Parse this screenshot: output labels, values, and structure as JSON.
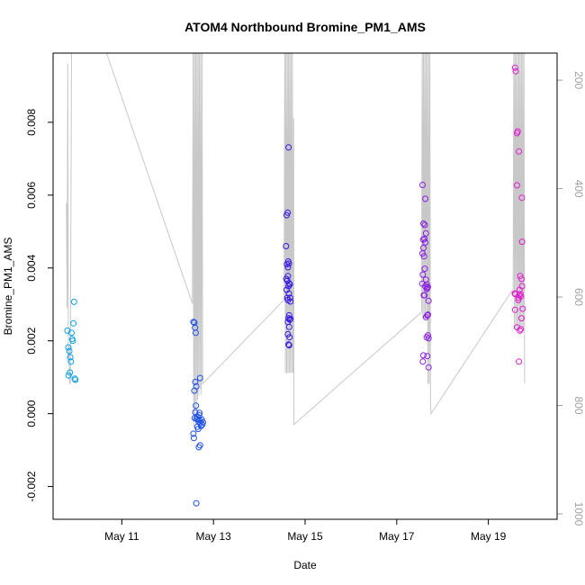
{
  "chart_data": {
    "type": "scatter",
    "title": "ATOM4 Northbound Bromine_PM1_AMS",
    "xlabel": "Date",
    "ylabel": "Bromine_PM1_AMS",
    "xlim": [
      "2016-05-09T12:00",
      "2016-05-20T12:00"
    ],
    "ylim": [
      -0.0029,
      0.0099
    ],
    "x_ticks": [
      {
        "date": "2016-05-11",
        "label": "May 11"
      },
      {
        "date": "2016-05-13",
        "label": "May 13"
      },
      {
        "date": "2016-05-15",
        "label": "May 15"
      },
      {
        "date": "2016-05-17",
        "label": "May 17"
      },
      {
        "date": "2016-05-19",
        "label": "May 19"
      }
    ],
    "y_ticks": [
      {
        "value": -0.002,
        "label": "-0.002"
      },
      {
        "value": 0.0,
        "label": "0.000"
      },
      {
        "value": 0.002,
        "label": "0.002"
      },
      {
        "value": 0.004,
        "label": "0.004"
      },
      {
        "value": 0.006,
        "label": "0.006"
      },
      {
        "value": 0.008,
        "label": "0.008"
      }
    ],
    "y2_ticks": [
      {
        "value": 200,
        "label": "200"
      },
      {
        "value": 400,
        "label": "400"
      },
      {
        "value": 600,
        "label": "600"
      },
      {
        "value": 800,
        "label": "800"
      },
      {
        "value": 1000,
        "label": "1000"
      }
    ],
    "y2lim": [
      1010,
      150
    ],
    "grid": false,
    "colors": {
      "day1": "#0aa0e8",
      "day2": "#1d4fe6",
      "day3": "#3318e6",
      "day4": "#8a1ee6",
      "day5": "#e21cd2",
      "line": "#c8c8c8",
      "axis": "#000000",
      "right_axis": "#a0a0a0"
    },
    "series": [
      {
        "color_key": "day1",
        "points": [
          [
            "2016-05-09T19:30",
            0.00228
          ],
          [
            "2016-05-09T20:00",
            0.00182
          ],
          [
            "2016-05-09T20:30",
            0.00172
          ],
          [
            "2016-05-09T21:00",
            0.00155
          ],
          [
            "2016-05-09T21:20",
            0.00143
          ],
          [
            "2016-05-09T21:40",
            0.00222
          ],
          [
            "2016-05-09T22:00",
            0.00205
          ],
          [
            "2016-05-09T22:20",
            0.002
          ],
          [
            "2016-05-09T22:40",
            0.00248
          ],
          [
            "2016-05-09T23:00",
            0.00307
          ],
          [
            "2016-05-09T23:20",
            0.00096
          ],
          [
            "2016-05-09T23:40",
            0.00093
          ],
          [
            "2016-05-09T20:10",
            0.00105
          ],
          [
            "2016-05-09T20:50",
            0.00113
          ]
        ]
      },
      {
        "color_key": "day2",
        "points": [
          [
            "2016-05-12T13:30",
            0.00252
          ],
          [
            "2016-05-12T14:00",
            0.0025
          ],
          [
            "2016-05-12T14:20",
            0.00236
          ],
          [
            "2016-05-12T14:40",
            0.00222
          ],
          [
            "2016-05-12T14:00",
            0.00063
          ],
          [
            "2016-05-12T14:30",
            0.00087
          ],
          [
            "2016-05-12T15:00",
            0.00075
          ],
          [
            "2016-05-12T13:30",
            -0.00055
          ],
          [
            "2016-05-12T13:45",
            -0.00067
          ],
          [
            "2016-05-12T14:10",
            -0.00012
          ],
          [
            "2016-05-12T14:30",
            4e-05
          ],
          [
            "2016-05-12T14:50",
            0.00022
          ],
          [
            "2016-05-12T15:10",
            -0.00014
          ],
          [
            "2016-05-12T15:30",
            -8e-05
          ],
          [
            "2016-05-12T15:50",
            -0.00016
          ],
          [
            "2016-05-12T16:10",
            -0.00022
          ],
          [
            "2016-05-12T16:30",
            -4e-05
          ],
          [
            "2016-05-12T16:50",
            -0.00018
          ],
          [
            "2016-05-12T17:10",
            -0.00026
          ],
          [
            "2016-05-12T17:30",
            -0.00034
          ],
          [
            "2016-05-12T17:50",
            -0.00016
          ],
          [
            "2016-05-12T18:10",
            -0.0003
          ],
          [
            "2016-05-12T18:30",
            -0.00024
          ],
          [
            "2016-05-12T15:30",
            -0.00036
          ],
          [
            "2016-05-12T16:00",
            -0.00042
          ],
          [
            "2016-05-12T16:20",
            -0.00092
          ],
          [
            "2016-05-12T17:00",
            -0.00087
          ],
          [
            "2016-05-12T17:00",
            0.00098
          ],
          [
            "2016-05-12T15:00",
            -0.00246
          ],
          [
            "2016-05-12T16:40",
            2e-05
          ]
        ]
      },
      {
        "color_key": "day3",
        "points": [
          [
            "2016-05-14T14:00",
            0.0046
          ],
          [
            "2016-05-14T14:20",
            0.00545
          ],
          [
            "2016-05-14T14:50",
            0.00552
          ],
          [
            "2016-05-14T15:20",
            0.00731
          ],
          [
            "2016-05-14T14:30",
            0.0041
          ],
          [
            "2016-05-14T15:00",
            0.00402
          ],
          [
            "2016-05-14T15:10",
            0.00418
          ],
          [
            "2016-05-14T15:30",
            0.00412
          ],
          [
            "2016-05-14T14:10",
            0.0037
          ],
          [
            "2016-05-14T14:40",
            0.00365
          ],
          [
            "2016-05-14T15:00",
            0.00378
          ],
          [
            "2016-05-14T15:20",
            0.0035
          ],
          [
            "2016-05-14T15:40",
            0.00358
          ],
          [
            "2016-05-14T16:00",
            0.00355
          ],
          [
            "2016-05-14T14:20",
            0.0034
          ],
          [
            "2016-05-14T14:40",
            0.00318
          ],
          [
            "2016-05-14T15:00",
            0.00312
          ],
          [
            "2016-05-14T15:30",
            0.0033
          ],
          [
            "2016-05-14T16:10",
            0.00318
          ],
          [
            "2016-05-14T16:20",
            0.00308
          ],
          [
            "2016-05-14T15:20",
            0.00262
          ],
          [
            "2016-05-14T15:40",
            0.0027
          ],
          [
            "2016-05-14T16:00",
            0.00258
          ],
          [
            "2016-05-14T16:20",
            0.0026
          ],
          [
            "2016-05-14T15:00",
            0.00252
          ],
          [
            "2016-05-14T15:40",
            0.00238
          ],
          [
            "2016-05-14T15:00",
            0.00218
          ],
          [
            "2016-05-14T15:50",
            0.0021
          ],
          [
            "2016-05-14T15:20",
            0.0019
          ],
          [
            "2016-05-14T15:40",
            0.00188
          ]
        ]
      },
      {
        "color_key": "day4",
        "points": [
          [
            "2016-05-17T13:30",
            0.00628
          ],
          [
            "2016-05-17T15:00",
            0.0059
          ],
          [
            "2016-05-17T14:00",
            0.00522
          ],
          [
            "2016-05-17T14:40",
            0.00518
          ],
          [
            "2016-05-17T13:50",
            0.00478
          ],
          [
            "2016-05-17T14:30",
            0.0048
          ],
          [
            "2016-05-17T15:00",
            0.0047
          ],
          [
            "2016-05-17T15:20",
            0.00495
          ],
          [
            "2016-05-17T13:30",
            0.0044
          ],
          [
            "2016-05-17T14:00",
            0.00455
          ],
          [
            "2016-05-17T14:20",
            0.00432
          ],
          [
            "2016-05-17T13:40",
            0.00382
          ],
          [
            "2016-05-17T14:40",
            0.00398
          ],
          [
            "2016-05-17T15:20",
            0.00368
          ],
          [
            "2016-05-17T15:40",
            0.00355
          ],
          [
            "2016-05-17T16:00",
            0.00345
          ],
          [
            "2016-05-17T13:20",
            0.00357
          ],
          [
            "2016-05-17T14:10",
            0.00325
          ],
          [
            "2016-05-17T14:30",
            0.00325
          ],
          [
            "2016-05-17T16:20",
            0.00348
          ],
          [
            "2016-05-17T15:00",
            0.0035
          ],
          [
            "2016-05-17T15:40",
            0.00342
          ],
          [
            "2016-05-17T16:40",
            0.0031
          ],
          [
            "2016-05-17T15:20",
            0.00265
          ],
          [
            "2016-05-17T16:00",
            0.0027
          ],
          [
            "2016-05-17T16:20",
            0.00272
          ],
          [
            "2016-05-17T15:40",
            0.0021
          ],
          [
            "2016-05-17T16:20",
            0.00215
          ],
          [
            "2016-05-17T16:40",
            0.00207
          ],
          [
            "2016-05-17T13:40",
            0.00143
          ],
          [
            "2016-05-17T14:00",
            0.0016
          ],
          [
            "2016-05-17T16:00",
            0.00158
          ],
          [
            "2016-05-17T16:40",
            0.00127
          ]
        ]
      },
      {
        "color_key": "day5",
        "points": [
          [
            "2016-05-19T14:00",
            0.0095
          ],
          [
            "2016-05-19T14:20",
            0.0094
          ],
          [
            "2016-05-19T15:00",
            0.0077
          ],
          [
            "2016-05-19T15:20",
            0.00775
          ],
          [
            "2016-05-19T16:00",
            0.0072
          ],
          [
            "2016-05-19T15:00",
            0.00627
          ],
          [
            "2016-05-19T17:30",
            0.00593
          ],
          [
            "2016-05-19T17:40",
            0.00472
          ],
          [
            "2016-05-19T16:40",
            0.00378
          ],
          [
            "2016-05-19T17:20",
            0.0037
          ],
          [
            "2016-05-19T17:40",
            0.0035
          ],
          [
            "2016-05-19T16:20",
            0.0034
          ],
          [
            "2016-05-19T13:50",
            0.0033
          ],
          [
            "2016-05-19T14:10",
            0.00328
          ],
          [
            "2016-05-19T16:10",
            0.00325
          ],
          [
            "2016-05-19T16:50",
            0.00328
          ],
          [
            "2016-05-19T17:00",
            0.00322
          ],
          [
            "2016-05-19T15:40",
            0.00312
          ],
          [
            "2016-05-19T15:50",
            0.00318
          ],
          [
            "2016-05-19T14:00",
            0.00285
          ],
          [
            "2016-05-19T18:00",
            0.00288
          ],
          [
            "2016-05-19T17:20",
            0.00262
          ],
          [
            "2016-05-19T15:00",
            0.00237
          ],
          [
            "2016-05-19T16:30",
            0.00228
          ],
          [
            "2016-05-19T17:00",
            0.00232
          ],
          [
            "2016-05-19T16:00",
            0.00143
          ]
        ]
      }
    ],
    "secondary_line": {
      "axis": "right",
      "points": [
        [
          "2016-05-09T19:00",
          427
        ],
        [
          "2016-05-09T19:20",
          620
        ],
        [
          "2016-05-09T19:40",
          170
        ],
        [
          "2016-05-09T20:00",
          720
        ],
        [
          "2016-05-09T20:20",
          690
        ],
        [
          "2016-05-09T20:40",
          760
        ],
        [
          "2016-05-09T21:00",
          760
        ],
        [
          "2016-05-09T21:40",
          150
        ],
        [
          "2016-05-10T16:00",
          150
        ],
        [
          "2016-05-12T13:00",
          612
        ],
        [
          "2016-05-12T13:20",
          150
        ],
        [
          "2016-05-12T13:40",
          840
        ],
        [
          "2016-05-12T14:00",
          150
        ],
        [
          "2016-05-12T14:20",
          820
        ],
        [
          "2016-05-12T14:40",
          150
        ],
        [
          "2016-05-12T15:00",
          810
        ],
        [
          "2016-05-12T15:20",
          150
        ],
        [
          "2016-05-12T15:40",
          790
        ],
        [
          "2016-05-12T16:00",
          150
        ],
        [
          "2016-05-12T16:20",
          780
        ],
        [
          "2016-05-12T16:40",
          150
        ],
        [
          "2016-05-12T17:00",
          770
        ],
        [
          "2016-05-12T17:20",
          150
        ],
        [
          "2016-05-12T17:40",
          780
        ],
        [
          "2016-05-12T18:00",
          150
        ],
        [
          "2016-05-12T18:20",
          760
        ],
        [
          "2016-05-14T13:00",
          605
        ],
        [
          "2016-05-14T13:20",
          150
        ],
        [
          "2016-05-14T13:40",
          740
        ],
        [
          "2016-05-14T14:00",
          150
        ],
        [
          "2016-05-14T14:20",
          740
        ],
        [
          "2016-05-14T14:40",
          150
        ],
        [
          "2016-05-14T15:00",
          740
        ],
        [
          "2016-05-14T15:20",
          150
        ],
        [
          "2016-05-14T15:40",
          740
        ],
        [
          "2016-05-14T16:00",
          150
        ],
        [
          "2016-05-14T16:20",
          740
        ],
        [
          "2016-05-14T16:40",
          150
        ],
        [
          "2016-05-14T17:00",
          740
        ],
        [
          "2016-05-14T17:20",
          150
        ],
        [
          "2016-05-14T17:40",
          740
        ],
        [
          "2016-05-14T18:00",
          270
        ],
        [
          "2016-05-14T18:10",
          835
        ],
        [
          "2016-05-17T13:00",
          628
        ],
        [
          "2016-05-17T13:20",
          150
        ],
        [
          "2016-05-17T13:40",
          640
        ],
        [
          "2016-05-17T14:00",
          150
        ],
        [
          "2016-05-17T14:20",
          640
        ],
        [
          "2016-05-17T14:40",
          150
        ],
        [
          "2016-05-17T15:00",
          640
        ],
        [
          "2016-05-17T15:20",
          150
        ],
        [
          "2016-05-17T15:40",
          640
        ],
        [
          "2016-05-17T16:00",
          150
        ],
        [
          "2016-05-17T16:20",
          760
        ],
        [
          "2016-05-17T16:40",
          150
        ],
        [
          "2016-05-17T17:00",
          760
        ],
        [
          "2016-05-17T17:20",
          150
        ],
        [
          "2016-05-17T17:40",
          800
        ],
        [
          "2016-05-17T18:00",
          815
        ],
        [
          "2016-05-19T13:00",
          585
        ],
        [
          "2016-05-19T13:20",
          150
        ],
        [
          "2016-05-19T13:40",
          660
        ],
        [
          "2016-05-19T14:00",
          150
        ],
        [
          "2016-05-19T14:20",
          660
        ],
        [
          "2016-05-19T14:40",
          150
        ],
        [
          "2016-05-19T15:00",
          660
        ],
        [
          "2016-05-19T15:20",
          150
        ],
        [
          "2016-05-19T15:40",
          660
        ],
        [
          "2016-05-19T16:00",
          150
        ],
        [
          "2016-05-19T16:20",
          660
        ],
        [
          "2016-05-19T16:40",
          150
        ],
        [
          "2016-05-19T17:00",
          660
        ],
        [
          "2016-05-19T17:20",
          150
        ],
        [
          "2016-05-19T17:40",
          660
        ],
        [
          "2016-05-19T18:00",
          150
        ],
        [
          "2016-05-19T18:20",
          660
        ],
        [
          "2016-05-19T18:40",
          150
        ],
        [
          "2016-05-19T19:00",
          760
        ]
      ]
    }
  }
}
